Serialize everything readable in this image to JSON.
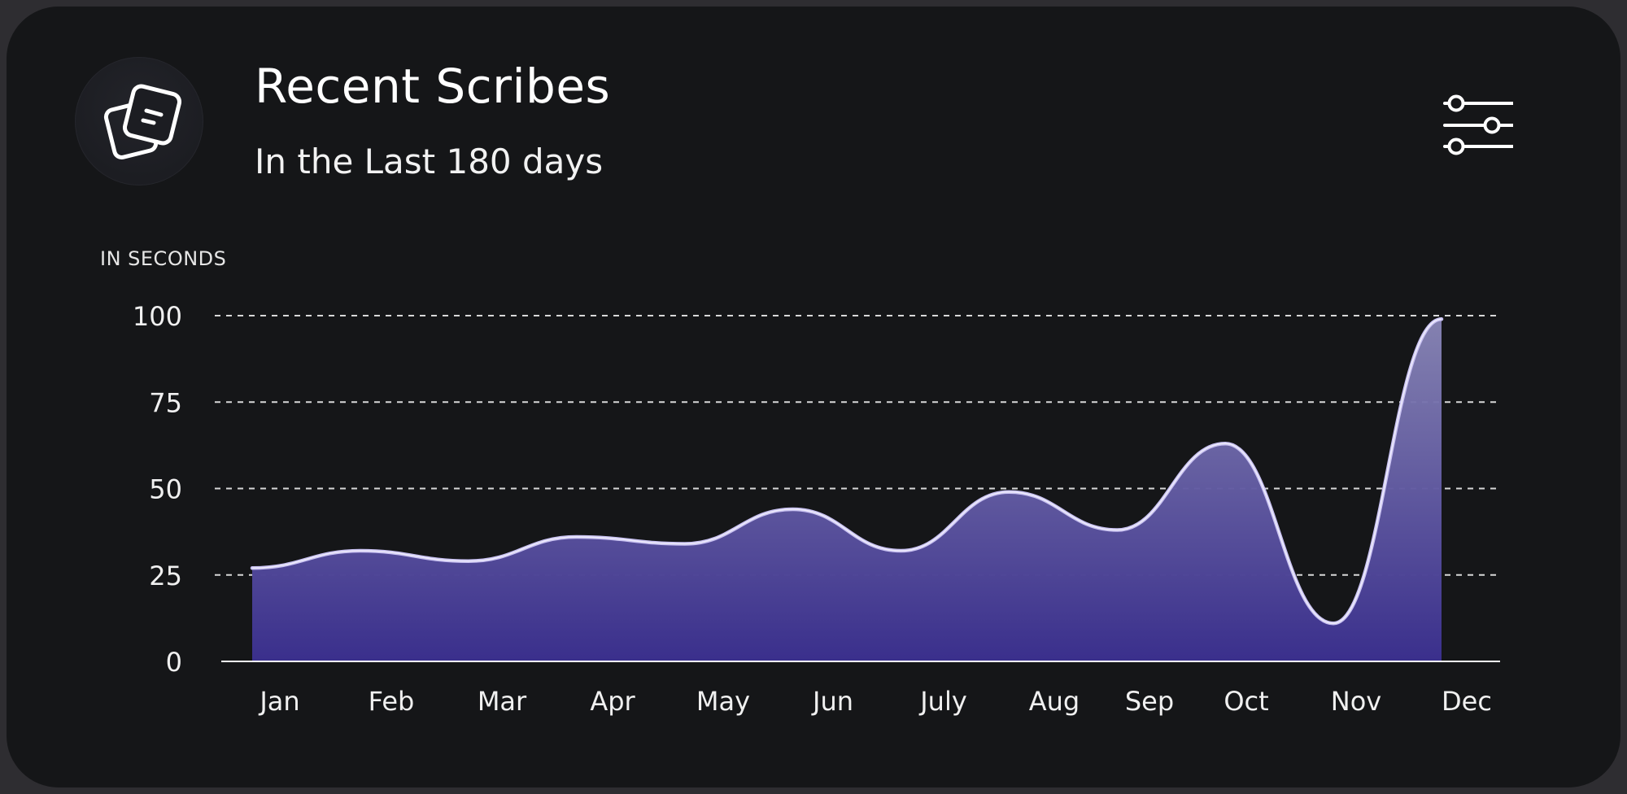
{
  "header": {
    "title": "Recent Scribes",
    "subtitle": "In the Last 180 days",
    "icon": "notes-stack-icon",
    "filter_icon": "sliders-icon"
  },
  "chart_data": {
    "type": "area",
    "ylabel": "IN SECONDS",
    "categories": [
      "Jan",
      "Feb",
      "Mar",
      "Apr",
      "May",
      "Jun",
      "July",
      "Aug",
      "Sep",
      "Oct",
      "Nov",
      "Dec"
    ],
    "series": [
      {
        "points": [
          {
            "x": 0.0,
            "y": 27
          },
          {
            "x": 1.0,
            "y": 32
          },
          {
            "x": 2.0,
            "y": 29
          },
          {
            "x": 3.0,
            "y": 36
          },
          {
            "x": 4.0,
            "y": 34
          },
          {
            "x": 5.0,
            "y": 44
          },
          {
            "x": 6.0,
            "y": 32
          },
          {
            "x": 7.0,
            "y": 49
          },
          {
            "x": 8.0,
            "y": 38
          },
          {
            "x": 9.0,
            "y": 63
          },
          {
            "x": 10.0,
            "y": 11
          },
          {
            "x": 11.0,
            "y": 99
          }
        ]
      }
    ],
    "yticks": [
      0,
      25,
      50,
      75,
      100
    ],
    "ylim": [
      0,
      100
    ],
    "grid": true,
    "colors": {
      "line": "#c9c2f2",
      "fill_top": "#8a87b8",
      "fill_bottom": "#3a2f8c",
      "grid": "#d8d8d8",
      "axis": "#ffffff"
    }
  }
}
